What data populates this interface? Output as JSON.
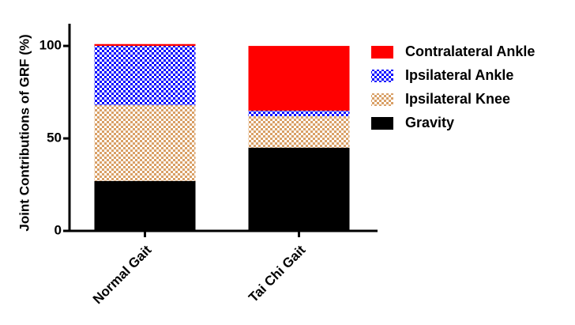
{
  "chart_data": {
    "type": "stacked_bar",
    "y_label": "Joint Contributions of GRF (%)",
    "categories": [
      "Normal Gait",
      "Tai Chi Gait"
    ],
    "series": [
      {
        "name": "Gravity",
        "color": "#000000",
        "values": [
          27,
          45
        ]
      },
      {
        "name": "Ipsilateral Knee",
        "color": "#d9a066",
        "pattern": "checker",
        "values": [
          41,
          17
        ]
      },
      {
        "name": "Ipsilateral Ankle",
        "color": "#0000ff",
        "pattern": "checker",
        "values": [
          32,
          3
        ]
      },
      {
        "name": "Contralateral Ankle",
        "color": "#ff0000",
        "values": [
          1,
          35
        ]
      }
    ],
    "ylim": [
      0,
      112
    ],
    "yticks": [
      0,
      50,
      100
    ],
    "legend": "right"
  }
}
